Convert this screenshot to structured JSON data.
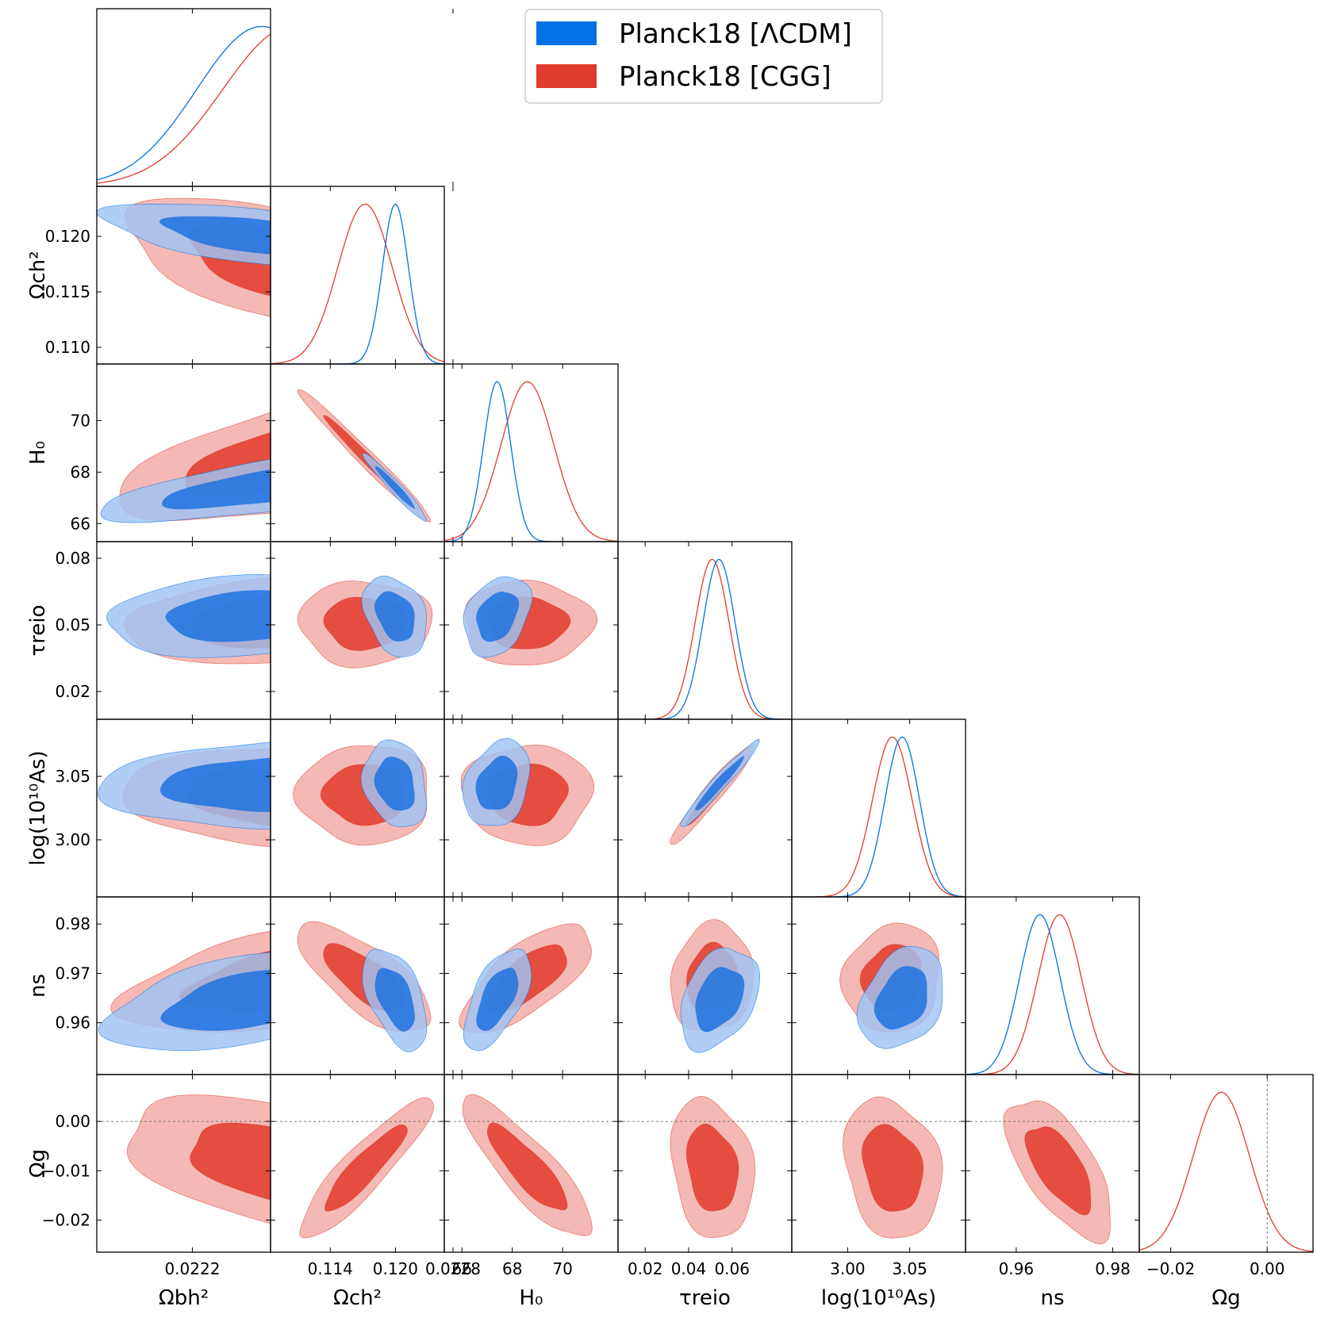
{
  "chart_data": {
    "type": "triangle-corner",
    "legend": {
      "placement": "top-right",
      "entries": [
        {
          "label": "Planck18 [ΛCDM]",
          "color": "#0072e5"
        },
        {
          "label": "Planck18 [CGG]",
          "color": "#e03b2c"
        }
      ]
    },
    "colors": {
      "lcdm_line": "#0072e5",
      "lcdm_inner": "#1f72e0",
      "lcdm_outer": "#9fc3f3",
      "cgg_line": "#e03b2c",
      "cgg_inner": "#e0392a",
      "cgg_outer": "#f2aaa3"
    },
    "params": [
      {
        "id": "omegabh2",
        "label": "Ωbh²",
        "range": [
          0.02198,
          0.02238
        ],
        "xticks": [
          "0.0222",
          "0.0228"
        ],
        "xtick_values": [
          0.0222,
          0.0228
        ],
        "yticks": [],
        "ytick_values": []
      },
      {
        "id": "omegach2",
        "label": "Ωch²",
        "range": [
          0.1085,
          0.1245
        ],
        "xticks": [
          "0.114",
          "0.120"
        ],
        "xtick_values": [
          0.114,
          0.12
        ],
        "yticks": [
          "0.120",
          "0.115",
          "0.110"
        ],
        "ytick_values": [
          0.12,
          0.115,
          0.11
        ]
      },
      {
        "id": "H0",
        "label": "H₀",
        "range": [
          65.3,
          72.2
        ],
        "xticks": [
          "66",
          "68",
          "70"
        ],
        "xtick_values": [
          66,
          68,
          70
        ],
        "yticks": [
          "70",
          "68",
          "66"
        ],
        "ytick_values": [
          70,
          68,
          66
        ]
      },
      {
        "id": "tau_reio",
        "label": "τreio",
        "range": [
          0.0075,
          0.0875
        ],
        "xticks": [
          "0.02",
          "0.04",
          "0.06"
        ],
        "xtick_values": [
          0.02,
          0.04,
          0.06
        ],
        "yticks": [
          "0.08",
          "0.05",
          "0.02"
        ],
        "ytick_values": [
          0.08,
          0.05,
          0.02
        ]
      },
      {
        "id": "logA",
        "label": "log(10¹⁰As)",
        "range": [
          2.955,
          3.095
        ],
        "xticks": [
          "3.00",
          "3.05"
        ],
        "xtick_values": [
          3.0,
          3.05
        ],
        "yticks": [
          "3.05",
          "3.00"
        ],
        "ytick_values": [
          3.05,
          3.0
        ]
      },
      {
        "id": "n_s",
        "label": "ns",
        "range": [
          0.9495,
          0.9855
        ],
        "xticks": [
          "0.96",
          "0.98"
        ],
        "xtick_values": [
          0.96,
          0.98
        ],
        "yticks": [
          "0.98",
          "0.97",
          "0.96"
        ],
        "ytick_values": [
          0.98,
          0.97,
          0.96
        ]
      },
      {
        "id": "omega_g",
        "label": "Ωg",
        "range": [
          -0.0265,
          0.0095
        ],
        "xticks": [
          "−0.02",
          "0.00"
        ],
        "xtick_values": [
          -0.02,
          0.0
        ],
        "yticks": [
          "0.00",
          "−0.01",
          "−0.02"
        ],
        "ytick_values": [
          0.0,
          -0.01,
          -0.02
        ]
      }
    ],
    "reference_lines": [
      {
        "param": "omega_g",
        "value": 0.0,
        "style": "dashed"
      }
    ],
    "series": [
      {
        "name": "Planck18 [ΛCDM]",
        "means": {
          "omegabh2": 0.02236,
          "omegach2": 0.12,
          "H0": 67.4,
          "tau_reio": 0.054,
          "logA": 3.044,
          "n_s": 0.9649
        },
        "sigmas": {
          "omegabh2": 0.00015,
          "omegach2": 0.0012,
          "H0": 0.54,
          "tau_reio": 0.0074,
          "logA": 0.014,
          "n_s": 0.0042
        },
        "correlations": [
          {
            "a": "omegabh2",
            "b": "omegach2",
            "rho": -0.55
          },
          {
            "a": "omegabh2",
            "b": "H0",
            "rho": 0.65
          },
          {
            "a": "omegabh2",
            "b": "tau_reio",
            "rho": 0.15
          },
          {
            "a": "omegabh2",
            "b": "logA",
            "rho": 0.15
          },
          {
            "a": "omegabh2",
            "b": "n_s",
            "rho": 0.5
          },
          {
            "a": "omegach2",
            "b": "H0",
            "rho": -0.97
          },
          {
            "a": "omegach2",
            "b": "tau_reio",
            "rho": -0.3
          },
          {
            "a": "omegach2",
            "b": "logA",
            "rho": -0.2
          },
          {
            "a": "omegach2",
            "b": "n_s",
            "rho": -0.5
          },
          {
            "a": "H0",
            "b": "tau_reio",
            "rho": 0.3
          },
          {
            "a": "H0",
            "b": "logA",
            "rho": 0.25
          },
          {
            "a": "H0",
            "b": "n_s",
            "rho": 0.6
          },
          {
            "a": "tau_reio",
            "b": "logA",
            "rho": 0.97
          },
          {
            "a": "tau_reio",
            "b": "n_s",
            "rho": 0.35
          },
          {
            "a": "logA",
            "b": "n_s",
            "rho": 0.3
          }
        ]
      },
      {
        "name": "Planck18 [CGG]",
        "means": {
          "omegabh2": 0.02243,
          "omegach2": 0.1172,
          "H0": 68.6,
          "tau_reio": 0.0508,
          "logA": 3.036,
          "n_s": 0.969,
          "omega_g": -0.0095
        },
        "sigmas": {
          "omegabh2": 0.00016,
          "omegach2": 0.0025,
          "H0": 1.05,
          "tau_reio": 0.0078,
          "logA": 0.016,
          "n_s": 0.0045,
          "omega_g": 0.0058
        },
        "correlations": [
          {
            "a": "omegabh2",
            "b": "omegach2",
            "rho": -0.6
          },
          {
            "a": "omegabh2",
            "b": "H0",
            "rho": 0.6
          },
          {
            "a": "omegabh2",
            "b": "tau_reio",
            "rho": 0.05
          },
          {
            "a": "omegabh2",
            "b": "logA",
            "rho": 0.05
          },
          {
            "a": "omegabh2",
            "b": "n_s",
            "rho": 0.45
          },
          {
            "a": "omegabh2",
            "b": "omega_g",
            "rho": -0.5
          },
          {
            "a": "omegach2",
            "b": "H0",
            "rho": -0.985
          },
          {
            "a": "omegach2",
            "b": "tau_reio",
            "rho": 0.0
          },
          {
            "a": "omegach2",
            "b": "logA",
            "rho": 0.0
          },
          {
            "a": "omegach2",
            "b": "n_s",
            "rho": -0.72
          },
          {
            "a": "omegach2",
            "b": "omega_g",
            "rho": 0.9
          },
          {
            "a": "H0",
            "b": "tau_reio",
            "rho": 0.0
          },
          {
            "a": "H0",
            "b": "logA",
            "rho": 0.0
          },
          {
            "a": "H0",
            "b": "n_s",
            "rho": 0.7
          },
          {
            "a": "H0",
            "b": "omega_g",
            "rho": -0.85
          },
          {
            "a": "tau_reio",
            "b": "logA",
            "rho": 0.96
          },
          {
            "a": "tau_reio",
            "b": "n_s",
            "rho": 0.1
          },
          {
            "a": "tau_reio",
            "b": "omega_g",
            "rho": -0.2
          },
          {
            "a": "logA",
            "b": "n_s",
            "rho": 0.1
          },
          {
            "a": "logA",
            "b": "omega_g",
            "rho": -0.2
          },
          {
            "a": "n_s",
            "b": "omega_g",
            "rho": -0.65
          }
        ]
      }
    ]
  }
}
